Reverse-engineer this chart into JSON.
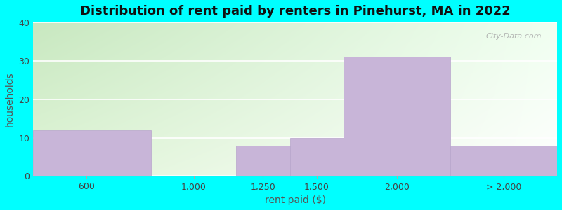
{
  "title": "Distribution of rent paid by renters in Pinehurst, MA in 2022",
  "xlabel": "rent paid ($)",
  "ylabel": "households",
  "xtick_labels": [
    "600",
    "1,000",
    "1,250",
    "1,500",
    "2,000",
    "> 2,000"
  ],
  "xtick_positions": [
    300,
    800,
    1125,
    1375,
    1750,
    2250
  ],
  "bar_lefts": [
    50,
    600,
    1000,
    1250,
    1500,
    2000
  ],
  "bar_widths": [
    550,
    0,
    250,
    250,
    500,
    500
  ],
  "values": [
    12,
    0,
    8,
    10,
    31,
    8
  ],
  "bar_color": "#C8B5D8",
  "bar_edge_color": "#B8A5CC",
  "ylim": [
    0,
    40
  ],
  "yticks": [
    0,
    10,
    20,
    30,
    40
  ],
  "xlim": [
    50,
    2500
  ],
  "background_color": "#00FFFF",
  "plot_bg_top_left": "#c8e8c0",
  "plot_bg_bottom_right": "#f0fff0",
  "title_fontsize": 13,
  "axis_label_fontsize": 10,
  "tick_fontsize": 9,
  "watermark": "City-Data.com"
}
